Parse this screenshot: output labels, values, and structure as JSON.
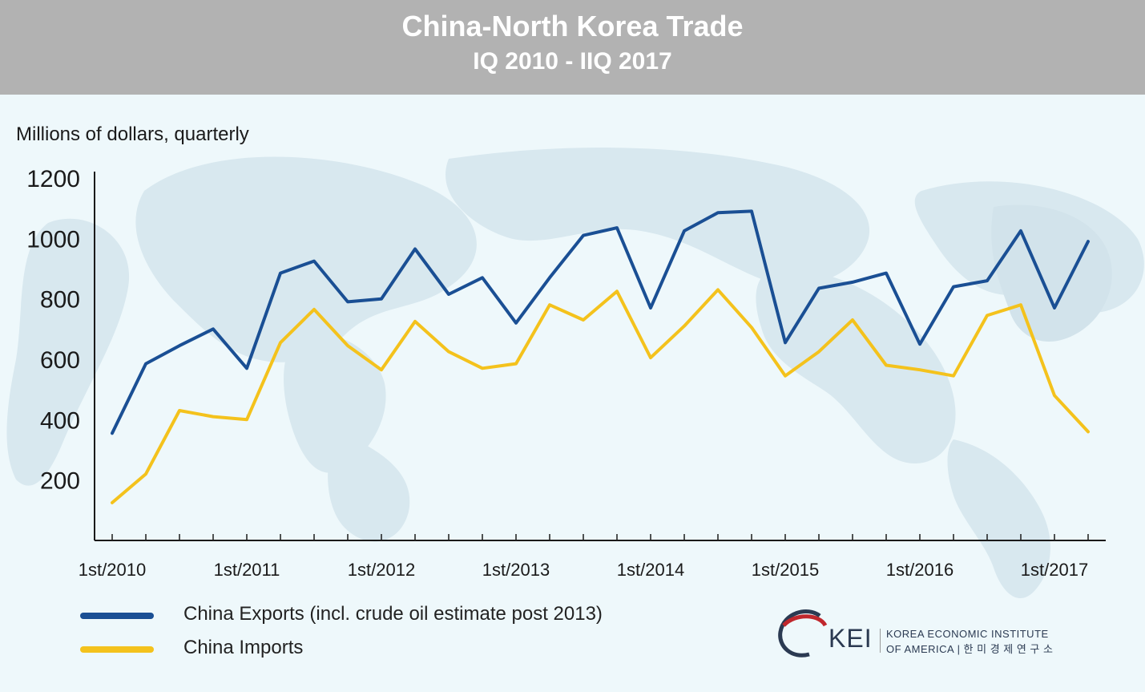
{
  "header": {
    "title": "China-North Korea Trade",
    "subtitle": "IQ 2010 - IIQ 2017"
  },
  "chart_data": {
    "type": "line",
    "ylabel": "Millions of dollars, quarterly",
    "ylim": [
      0,
      1200
    ],
    "yticks": [
      200,
      400,
      600,
      800,
      1000,
      1200
    ],
    "x": [
      "IQ 2010",
      "IIQ 2010",
      "IIIQ 2010",
      "IVQ 2010",
      "IQ 2011",
      "IIQ 2011",
      "IIIQ 2011",
      "IVQ 2011",
      "IQ 2012",
      "IIQ 2012",
      "IIIQ 2012",
      "IVQ 2012",
      "IQ 2013",
      "IIQ 2013",
      "IIIQ 2013",
      "IVQ 2013",
      "IQ 2014",
      "IIQ 2014",
      "IIIQ 2014",
      "IVQ 2014",
      "IQ 2015",
      "IIQ 2015",
      "IIIQ 2015",
      "IVQ 2015",
      "IQ 2016",
      "IIQ 2016",
      "IIIQ 2016",
      "IVQ 2016",
      "IQ 2017",
      "IIQ 2017"
    ],
    "xtick_labels": [
      {
        "index": 0,
        "label": "1st/2010"
      },
      {
        "index": 4,
        "label": "1st/2011"
      },
      {
        "index": 8,
        "label": "1st/2012"
      },
      {
        "index": 12,
        "label": "1st/2013"
      },
      {
        "index": 16,
        "label": "1st/2014"
      },
      {
        "index": 20,
        "label": "1st/2015"
      },
      {
        "index": 24,
        "label": "1st/2016"
      },
      {
        "index": 28,
        "label": "1st/2017"
      }
    ],
    "series": [
      {
        "name": "China Exports (incl. crude oil estimate post 2013)",
        "color": "#1a4f94",
        "values": [
          355,
          585,
          645,
          700,
          570,
          885,
          925,
          790,
          800,
          965,
          815,
          870,
          720,
          870,
          1010,
          1035,
          770,
          1025,
          1085,
          1090,
          655,
          835,
          855,
          885,
          650,
          840,
          860,
          1025,
          770,
          990
        ]
      },
      {
        "name": "China Imports",
        "color": "#f4c21c",
        "values": [
          125,
          220,
          430,
          410,
          400,
          655,
          765,
          645,
          565,
          725,
          625,
          570,
          585,
          780,
          730,
          825,
          605,
          710,
          830,
          705,
          545,
          625,
          730,
          580,
          565,
          545,
          745,
          780,
          480,
          360
        ]
      }
    ],
    "legend": "bottom-left",
    "grid": false
  },
  "logo": {
    "text": "KEI",
    "line1": "KOREA ECONOMIC INSTITUTE",
    "line2": "OF AMERICA | 한 미 경 제 연 구 소"
  }
}
